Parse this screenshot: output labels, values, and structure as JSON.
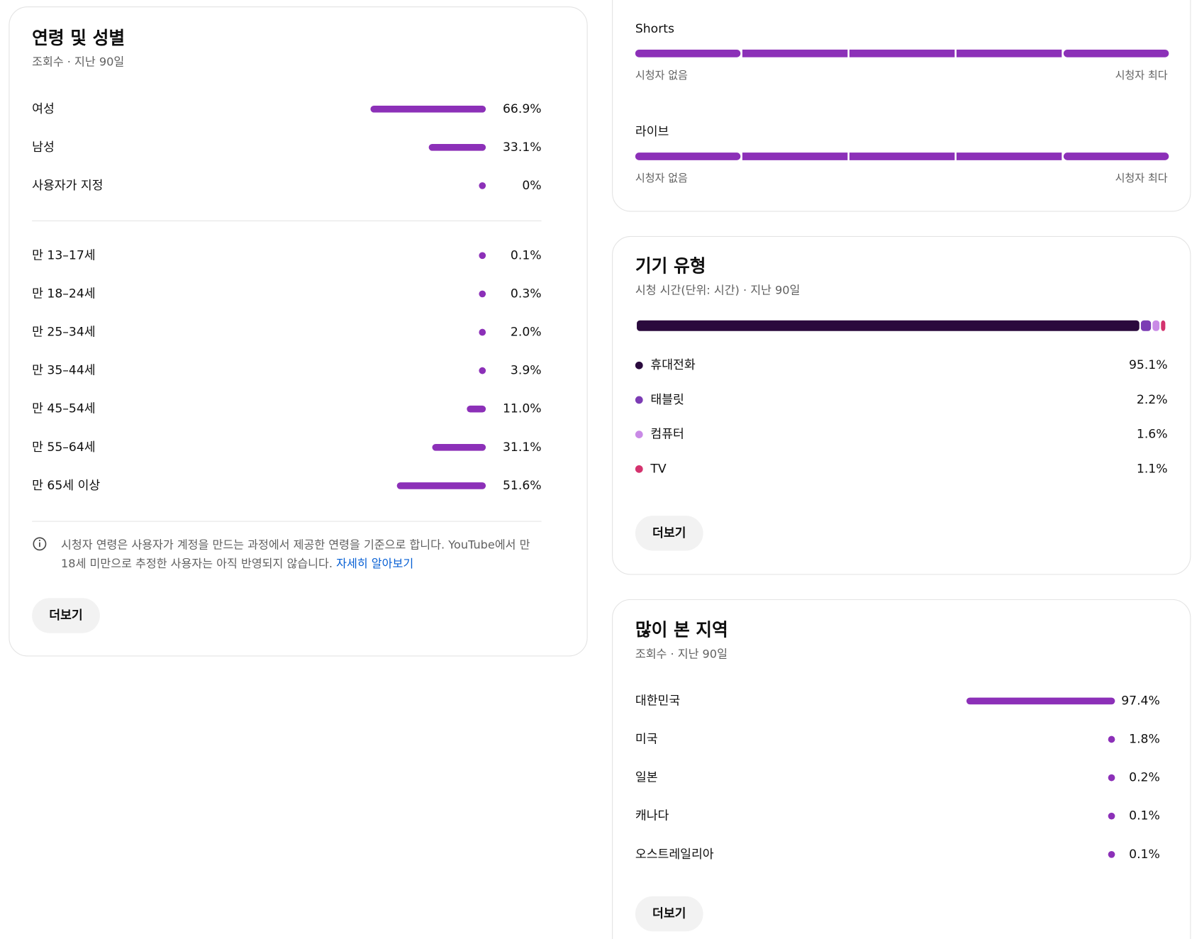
{
  "age_gender": {
    "title": "연령 및 성별",
    "subtitle": "조회수 · 지난 90일",
    "color": "#8c30b8",
    "gender": {
      "labels": [
        "여성",
        "남성",
        "사용자가 지정"
      ],
      "values": [
        66.9,
        33.1,
        0
      ],
      "value_labels": [
        "66.9%",
        "33.1%",
        "0%"
      ]
    },
    "age": {
      "labels": [
        "만 13–17세",
        "만 18–24세",
        "만 25–34세",
        "만 35–44세",
        "만 45–54세",
        "만 55–64세",
        "만 65세 이상"
      ],
      "values": [
        0.1,
        0.3,
        2.0,
        3.9,
        11.0,
        31.1,
        51.6
      ],
      "value_labels": [
        "0.1%",
        "0.3%",
        "2.0%",
        "3.9%",
        "11.0%",
        "31.1%",
        "51.6%"
      ]
    },
    "note": "시청자 연령은 사용자가 계정을 만드는 과정에서 제공한 연령을 기준으로 합니다. YouTube에서 만 18세 미만으로 추정한 사용자는 아직 반영되지 않습니다.",
    "link": "자세히 알아보기",
    "button": "더보기"
  },
  "formats": {
    "items": [
      "Shorts",
      "라이브"
    ],
    "min_label": "시청자 없음",
    "max_label": "시청자 최다",
    "color": "#8c30b8"
  },
  "device": {
    "title": "기기 유형",
    "subtitle": "시청 시간(단위: 시간) · 지난 90일",
    "labels": [
      "휴대전화",
      "태블릿",
      "컴퓨터",
      "TV"
    ],
    "values": [
      95.1,
      2.2,
      1.6,
      1.1
    ],
    "value_labels": [
      "95.1%",
      "2.2%",
      "1.6%",
      "1.1%"
    ],
    "colors": [
      "#2a0a3d",
      "#7c3cb4",
      "#c98ae6",
      "#d4336e"
    ],
    "button": "더보기"
  },
  "regions": {
    "title": "많이 본 지역",
    "subtitle": "조회수 · 지난 90일",
    "color": "#8c30b8",
    "labels": [
      "대한민국",
      "미국",
      "일본",
      "캐나다",
      "오스트레일리아"
    ],
    "values": [
      97.4,
      1.8,
      0.2,
      0.1,
      0.1
    ],
    "value_labels": [
      "97.4%",
      "1.8%",
      "0.2%",
      "0.1%",
      "0.1%"
    ],
    "button": "더보기"
  }
}
